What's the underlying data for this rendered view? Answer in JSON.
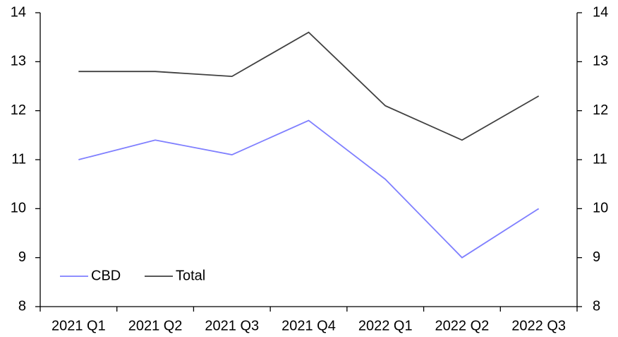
{
  "chart_data": {
    "type": "line",
    "categories": [
      "2021 Q1",
      "2021 Q2",
      "2021 Q3",
      "2021 Q4",
      "2022 Q1",
      "2022 Q2",
      "2022 Q3"
    ],
    "series": [
      {
        "name": "CBD",
        "color": "#7f7fff",
        "values": [
          11.0,
          11.4,
          11.1,
          11.8,
          10.6,
          9.0,
          10.0
        ]
      },
      {
        "name": "Total",
        "color": "#404040",
        "values": [
          12.8,
          12.8,
          12.7,
          13.6,
          12.1,
          11.4,
          12.3
        ]
      }
    ],
    "ylim": [
      8,
      14
    ],
    "yticks": [
      8,
      9,
      10,
      11,
      12,
      13,
      14
    ],
    "y2lim": [
      8,
      14
    ],
    "y2ticks": [
      8,
      9,
      10,
      11,
      12,
      13,
      14
    ],
    "grid": false,
    "legend": "lower left"
  }
}
